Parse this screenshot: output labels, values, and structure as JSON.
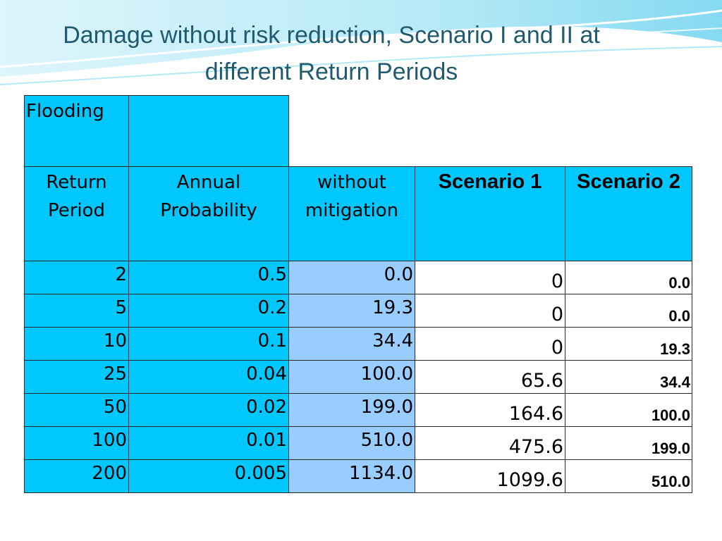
{
  "slide": {
    "title_line1": "Damage without risk reduction, Scenario I and II at",
    "title_line2": "different Return Periods"
  },
  "table": {
    "corner_label": "Flooding",
    "headers": {
      "return_period": "Return Period",
      "annual_probability": "Annual Probability",
      "without_mitigation": "without mitigation",
      "scenario1": "Scenario 1",
      "scenario2": "Scenario 2"
    },
    "rows": [
      {
        "return_period": "2",
        "probability": "0.5",
        "without": "0.0",
        "s1": "0",
        "s2": "0.0"
      },
      {
        "return_period": "5",
        "probability": "0.2",
        "without": "19.3",
        "s1": "0",
        "s2": "0.0"
      },
      {
        "return_period": "10",
        "probability": "0.1",
        "without": "34.4",
        "s1": "0",
        "s2": "19.3"
      },
      {
        "return_period": "25",
        "probability": "0.04",
        "without": "100.0",
        "s1": "65.6",
        "s2": "34.4"
      },
      {
        "return_period": "50",
        "probability": "0.02",
        "without": "199.0",
        "s1": "164.6",
        "s2": "100.0"
      },
      {
        "return_period": "100",
        "probability": "0.01",
        "without": "510.0",
        "s1": "475.6",
        "s2": "199.0"
      },
      {
        "return_period": "200",
        "probability": "0.005",
        "without": "1134.0",
        "s1": "1099.6",
        "s2": "510.0"
      }
    ]
  },
  "colors": {
    "header_fill": "#00c8ff",
    "without_mitigation_fill": "#99ccff",
    "title_color": "#1f5a6e"
  }
}
